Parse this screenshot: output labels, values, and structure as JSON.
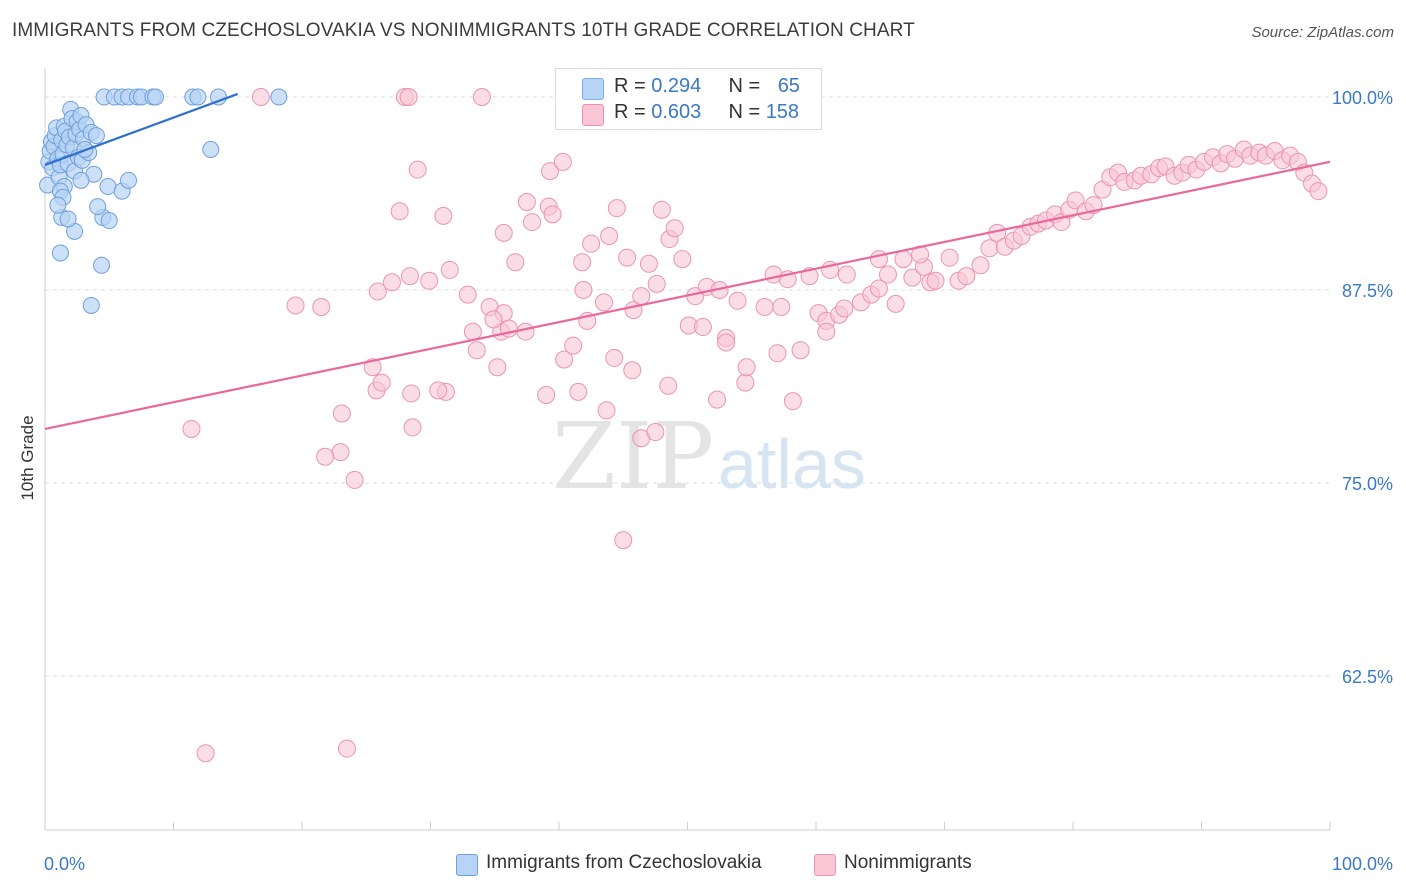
{
  "title": "IMMIGRANTS FROM CZECHOSLOVAKIA VS NONIMMIGRANTS 10TH GRADE CORRELATION CHART",
  "source": "Source: ZipAtlas.com",
  "watermark": {
    "zip": "ZIP",
    "atlas": "atlas"
  },
  "legend_stats": [
    {
      "r_label": "R = ",
      "r_value": "0.294",
      "n_label": "N = ",
      "n_value": "65",
      "color": "#7aaee8",
      "fill": "#b7d3f5"
    },
    {
      "r_label": "R = ",
      "r_value": "0.603",
      "n_label": "N = ",
      "n_value": "158",
      "color": "#f08fb0",
      "fill": "#f9c6d6"
    }
  ],
  "bottom_legend": [
    {
      "label": "Immigrants from Czechoslovakia",
      "fill": "#b7d3f5",
      "stroke": "#6fa0dc"
    },
    {
      "label": "Nonimmigrants",
      "fill": "#f9c6d6",
      "stroke": "#ec94b2"
    }
  ],
  "chart_data": {
    "type": "scatter",
    "title": "IMMIGRANTS FROM CZECHOSLOVAKIA VS NONIMMIGRANTS 10TH GRADE CORRELATION CHART",
    "xlabel": "",
    "ylabel": "10th Grade",
    "xlim": [
      0,
      100
    ],
    "ylim": [
      51.5,
      100.5
    ],
    "x_tick_labels": [
      "0.0%",
      "100.0%"
    ],
    "y_ticks": [
      100,
      87.5,
      75,
      62.5
    ],
    "y_tick_labels": [
      "100.0%",
      "87.5%",
      "75.0%",
      "62.5%"
    ],
    "grid": true,
    "colors": {
      "blue_line": "#2f6fcf",
      "pink_line": "#e8699a",
      "axis_text": "#3a78c8"
    },
    "series": [
      {
        "name": "Immigrants from Czechoslovakia",
        "color": "#6fa0dc",
        "fill": "#b7d3f5",
        "trend": {
          "x": [
            0,
            15
          ],
          "y": [
            95.6,
            100.2
          ]
        },
        "points": [
          [
            0.2,
            94.3
          ],
          [
            0.3,
            95.8
          ],
          [
            0.4,
            96.5
          ],
          [
            0.5,
            97.1
          ],
          [
            0.6,
            95.4
          ],
          [
            0.7,
            96.8
          ],
          [
            0.8,
            97.5
          ],
          [
            0.9,
            98.0
          ],
          [
            1.0,
            96.0
          ],
          [
            1.1,
            94.8
          ],
          [
            1.2,
            95.6
          ],
          [
            1.3,
            97.2
          ],
          [
            1.4,
            96.3
          ],
          [
            1.5,
            98.1
          ],
          [
            1.6,
            97.8
          ],
          [
            1.7,
            96.9
          ],
          [
            1.8,
            95.7
          ],
          [
            1.9,
            97.4
          ],
          [
            2.0,
            99.2
          ],
          [
            2.1,
            98.6
          ],
          [
            2.2,
            96.7
          ],
          [
            2.3,
            95.2
          ],
          [
            2.4,
            97.6
          ],
          [
            2.5,
            98.4
          ],
          [
            2.6,
            96.1
          ],
          [
            2.7,
            97.9
          ],
          [
            2.8,
            98.8
          ],
          [
            2.9,
            95.9
          ],
          [
            3.0,
            97.3
          ],
          [
            3.2,
            98.2
          ],
          [
            3.4,
            96.4
          ],
          [
            3.6,
            97.7
          ],
          [
            3.8,
            95.0
          ],
          [
            4.0,
            97.5
          ],
          [
            3.1,
            96.6
          ],
          [
            2.8,
            94.6
          ],
          [
            1.5,
            94.2
          ],
          [
            1.2,
            93.9
          ],
          [
            1.4,
            93.5
          ],
          [
            1.3,
            92.2
          ],
          [
            2.3,
            91.3
          ],
          [
            4.6,
            100
          ],
          [
            5.4,
            100
          ],
          [
            6.0,
            100
          ],
          [
            6.5,
            100
          ],
          [
            7.2,
            100
          ],
          [
            7.5,
            100
          ],
          [
            8.4,
            100
          ],
          [
            8.6,
            100
          ],
          [
            11.5,
            100
          ],
          [
            11.9,
            100
          ],
          [
            13.5,
            100
          ],
          [
            18.2,
            100
          ],
          [
            4.5,
            92.2
          ],
          [
            4.4,
            89.1
          ],
          [
            5.0,
            92.0
          ],
          [
            4.1,
            92.9
          ],
          [
            4.9,
            94.2
          ],
          [
            6.0,
            93.9
          ],
          [
            6.5,
            94.6
          ],
          [
            1.2,
            89.9
          ],
          [
            3.6,
            86.5
          ],
          [
            12.9,
            96.6
          ],
          [
            1.0,
            93.0
          ],
          [
            1.8,
            92.1
          ]
        ]
      },
      {
        "name": "Nonimmigrants",
        "color": "#ec94b2",
        "fill": "#f9c6d6",
        "trend": {
          "x": [
            0,
            100
          ],
          "y": [
            78.5,
            95.8
          ]
        },
        "points": [
          [
            16.8,
            100
          ],
          [
            28.0,
            100
          ],
          [
            28.3,
            100
          ],
          [
            34.0,
            100
          ],
          [
            11.4,
            78.5
          ],
          [
            12.5,
            57.5
          ],
          [
            23.5,
            57.8
          ],
          [
            23.0,
            77.0
          ],
          [
            21.8,
            76.7
          ],
          [
            24.1,
            75.2
          ],
          [
            23.1,
            79.5
          ],
          [
            25.8,
            81.0
          ],
          [
            26.2,
            81.5
          ],
          [
            25.5,
            82.5
          ],
          [
            28.5,
            80.8
          ],
          [
            19.5,
            86.5
          ],
          [
            21.5,
            86.4
          ],
          [
            27.0,
            88.0
          ],
          [
            28.4,
            88.4
          ],
          [
            25.9,
            87.4
          ],
          [
            27.6,
            92.6
          ],
          [
            29.0,
            95.3
          ],
          [
            31.0,
            92.3
          ],
          [
            31.5,
            88.8
          ],
          [
            32.9,
            87.2
          ],
          [
            34.6,
            86.4
          ],
          [
            33.3,
            84.8
          ],
          [
            35.7,
            86.0
          ],
          [
            35.2,
            82.5
          ],
          [
            35.5,
            84.8
          ],
          [
            36.6,
            89.3
          ],
          [
            35.7,
            91.2
          ],
          [
            37.5,
            93.2
          ],
          [
            37.9,
            91.9
          ],
          [
            39.2,
            92.9
          ],
          [
            39.3,
            95.2
          ],
          [
            39.5,
            92.4
          ],
          [
            40.3,
            95.8
          ],
          [
            39.0,
            80.7
          ],
          [
            40.4,
            83.0
          ],
          [
            41.1,
            83.9
          ],
          [
            41.5,
            80.9
          ],
          [
            41.9,
            87.5
          ],
          [
            42.2,
            85.5
          ],
          [
            41.8,
            89.3
          ],
          [
            42.5,
            90.5
          ],
          [
            43.9,
            91.0
          ],
          [
            44.5,
            92.8
          ],
          [
            45.3,
            89.6
          ],
          [
            45.7,
            82.3
          ],
          [
            43.7,
            79.7
          ],
          [
            44.3,
            83.1
          ],
          [
            45.0,
            71.3
          ],
          [
            46.4,
            77.9
          ],
          [
            47.0,
            89.2
          ],
          [
            47.6,
            87.9
          ],
          [
            48.0,
            92.7
          ],
          [
            48.6,
            90.8
          ],
          [
            49.0,
            91.5
          ],
          [
            49.6,
            89.5
          ],
          [
            50.1,
            85.2
          ],
          [
            50.6,
            87.1
          ],
          [
            51.2,
            85.1
          ],
          [
            51.5,
            87.7
          ],
          [
            52.5,
            87.5
          ],
          [
            53.0,
            84.4
          ],
          [
            53.9,
            86.8
          ],
          [
            54.5,
            81.5
          ],
          [
            56.7,
            88.5
          ],
          [
            57.3,
            86.4
          ],
          [
            57.8,
            88.2
          ],
          [
            58.8,
            83.6
          ],
          [
            59.5,
            88.4
          ],
          [
            60.2,
            86.0
          ],
          [
            60.8,
            85.5
          ],
          [
            61.1,
            88.8
          ],
          [
            61.8,
            85.9
          ],
          [
            62.4,
            88.5
          ],
          [
            63.5,
            86.7
          ],
          [
            64.3,
            87.2
          ],
          [
            64.9,
            89.5
          ],
          [
            65.6,
            88.5
          ],
          [
            66.2,
            86.6
          ],
          [
            66.8,
            89.5
          ],
          [
            67.5,
            88.3
          ],
          [
            68.4,
            89.0
          ],
          [
            68.9,
            88.0
          ],
          [
            69.3,
            88.1
          ],
          [
            70.4,
            89.6
          ],
          [
            71.1,
            88.1
          ],
          [
            71.7,
            88.4
          ],
          [
            72.8,
            89.1
          ],
          [
            73.5,
            90.2
          ],
          [
            74.1,
            91.2
          ],
          [
            74.7,
            90.3
          ],
          [
            75.4,
            90.7
          ],
          [
            76.0,
            91.0
          ],
          [
            76.7,
            91.6
          ],
          [
            77.3,
            91.8
          ],
          [
            77.9,
            92.0
          ],
          [
            78.6,
            92.4
          ],
          [
            79.1,
            91.9
          ],
          [
            79.7,
            92.7
          ],
          [
            80.2,
            93.3
          ],
          [
            81.0,
            92.6
          ],
          [
            81.6,
            93.0
          ],
          [
            82.3,
            94.0
          ],
          [
            82.9,
            94.8
          ],
          [
            83.5,
            95.1
          ],
          [
            84.0,
            94.5
          ],
          [
            84.8,
            94.6
          ],
          [
            85.3,
            94.9
          ],
          [
            86.1,
            95.0
          ],
          [
            86.7,
            95.4
          ],
          [
            87.2,
            95.5
          ],
          [
            87.9,
            94.9
          ],
          [
            88.5,
            95.1
          ],
          [
            89.0,
            95.6
          ],
          [
            89.6,
            95.3
          ],
          [
            90.2,
            95.8
          ],
          [
            90.9,
            96.1
          ],
          [
            91.5,
            95.7
          ],
          [
            92.0,
            96.3
          ],
          [
            92.6,
            96.0
          ],
          [
            93.3,
            96.6
          ],
          [
            93.8,
            96.2
          ],
          [
            94.5,
            96.4
          ],
          [
            95.0,
            96.2
          ],
          [
            95.7,
            96.5
          ],
          [
            96.3,
            95.9
          ],
          [
            96.9,
            96.2
          ],
          [
            97.5,
            95.8
          ],
          [
            98.0,
            95.1
          ],
          [
            98.6,
            94.4
          ],
          [
            99.1,
            93.9
          ],
          [
            68.1,
            89.8
          ],
          [
            56.0,
            86.4
          ],
          [
            54.6,
            82.5
          ],
          [
            53.0,
            84.1
          ],
          [
            48.5,
            81.3
          ],
          [
            47.5,
            78.3
          ],
          [
            45.8,
            86.2
          ],
          [
            43.5,
            86.7
          ],
          [
            34.9,
            85.6
          ],
          [
            37.4,
            84.8
          ],
          [
            36.1,
            85.0
          ],
          [
            33.6,
            83.6
          ],
          [
            31.2,
            80.9
          ],
          [
            28.6,
            78.6
          ],
          [
            30.6,
            81.0
          ],
          [
            46.4,
            87.1
          ],
          [
            52.3,
            80.4
          ],
          [
            60.8,
            84.8
          ],
          [
            62.2,
            86.3
          ],
          [
            64.9,
            87.6
          ],
          [
            58.2,
            80.3
          ],
          [
            57.0,
            83.4
          ],
          [
            29.9,
            88.1
          ]
        ]
      }
    ]
  }
}
